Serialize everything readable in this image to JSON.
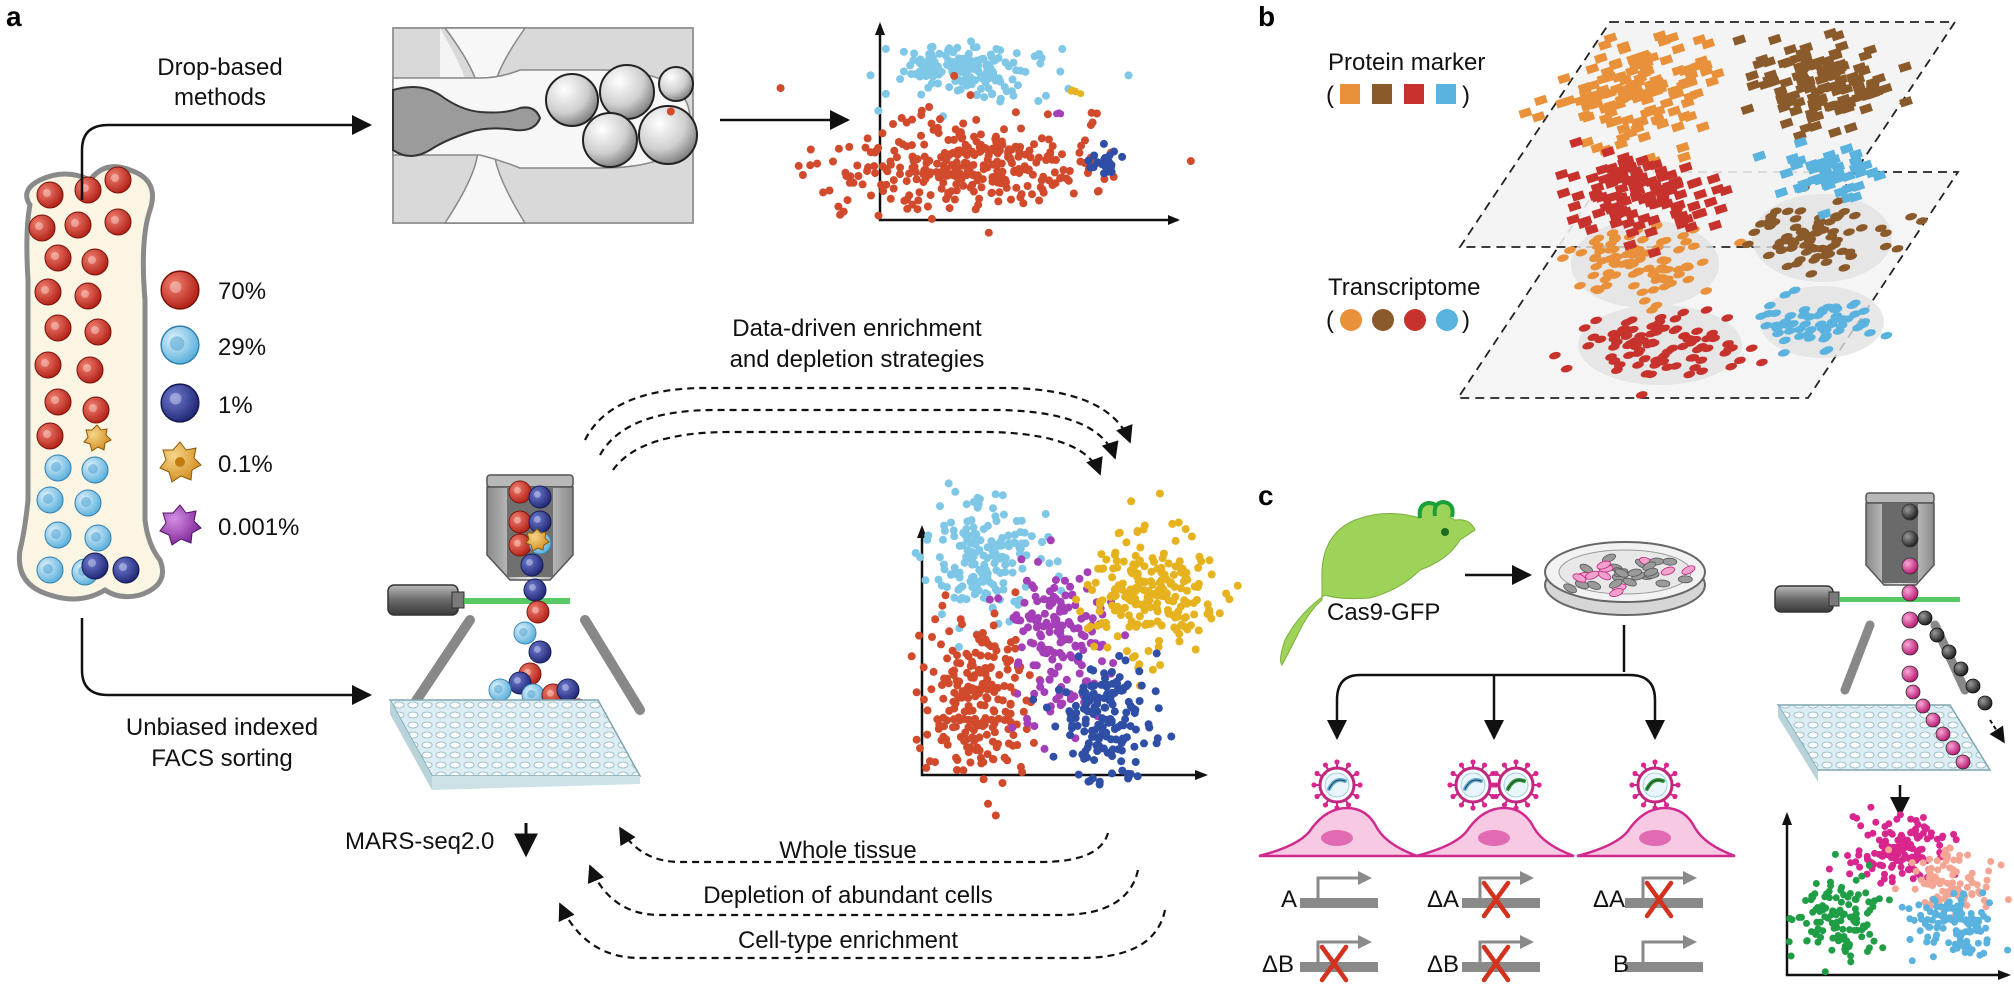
{
  "panels": {
    "a": "a",
    "b": "b",
    "c": "c"
  },
  "panel_a": {
    "drop_label_1": "Drop-based",
    "drop_label_2": "methods",
    "facs_label_1": "Unbiased indexed",
    "facs_label_2": "FACS sorting",
    "marsseq": "MARS-seq2.0",
    "enrich_label_1": "Data-driven enrichment",
    "enrich_label_2": "and depletion strategies",
    "loop_labels": [
      "Whole tissue",
      "Depletion of abundant cells",
      "Cell-type enrichment"
    ],
    "percentages": [
      {
        "value": "70%",
        "color": "#c8281e"
      },
      {
        "value": "29%",
        "color": "#6cbfe6"
      },
      {
        "value": "1%",
        "color": "#2e3a94"
      },
      {
        "value": "0.1%",
        "color": "#e6a532"
      },
      {
        "value": "0.001%",
        "color": "#9b3bb5"
      }
    ]
  },
  "panel_b": {
    "protein_label": "Protein marker",
    "protein_open": "(",
    "protein_close": ")",
    "protein_colors": [
      "#e8913a",
      "#8b5a2b",
      "#c8322c",
      "#5ab2df"
    ],
    "transcriptome_label": "Transcriptome",
    "transcriptome_open": "(",
    "transcriptome_close": ")",
    "transcriptome_colors": [
      "#e8913a",
      "#8b5a2b",
      "#c8322c",
      "#5ab2df"
    ]
  },
  "panel_c": {
    "mouse_label": "Cas9-GFP",
    "row1": [
      "A",
      "ΔA",
      "ΔA"
    ],
    "row2": [
      "ΔB",
      "ΔB",
      "B"
    ]
  },
  "colors": {
    "red_cell": "#c8281e",
    "light_blue_cell": "#6cbfe6",
    "dark_blue_cell": "#2e3a94",
    "orange_cell": "#e6a532",
    "purple_cell": "#9b3bb5",
    "mouse_green": "#9ed35a",
    "magenta": "#d9268e",
    "knockout_red": "#d2321e"
  }
}
